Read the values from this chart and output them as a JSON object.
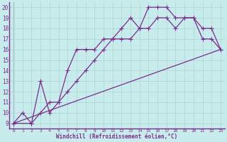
{
  "xlabel": "Windchill (Refroidissement éolien,°C)",
  "bg_color": "#c8ecec",
  "line_color": "#7b2d8b",
  "grid_color": "#b0d8d8",
  "xlim": [
    -0.5,
    23.5
  ],
  "ylim": [
    8.5,
    20.5
  ],
  "xticks": [
    0,
    1,
    2,
    3,
    4,
    5,
    6,
    7,
    8,
    9,
    10,
    11,
    12,
    13,
    14,
    15,
    16,
    17,
    18,
    19,
    20,
    21,
    22,
    23
  ],
  "yticks": [
    9,
    10,
    11,
    12,
    13,
    14,
    15,
    16,
    17,
    18,
    19,
    20
  ],
  "line1_x": [
    0,
    1,
    2,
    3,
    4,
    5,
    6,
    7,
    8,
    9,
    10,
    11,
    12,
    13,
    14,
    15,
    16,
    17,
    18,
    19,
    20,
    21,
    22,
    23
  ],
  "line1_y": [
    9,
    10,
    9,
    13,
    10,
    11,
    14,
    16,
    16,
    16,
    17,
    17,
    18,
    19,
    18,
    20,
    20,
    20,
    19,
    19,
    19,
    18,
    18,
    16
  ],
  "line2_x": [
    0,
    2,
    3,
    4,
    5,
    6,
    7,
    8,
    9,
    10,
    11,
    12,
    13,
    14,
    15,
    16,
    17,
    18,
    19,
    20,
    21,
    22,
    23
  ],
  "line2_y": [
    9,
    9,
    10,
    11,
    11,
    12,
    13,
    14,
    15,
    16,
    17,
    17,
    17,
    18,
    18,
    19,
    19,
    18,
    19,
    19,
    17,
    17,
    16
  ],
  "line3_x": [
    0,
    23
  ],
  "line3_y": [
    9,
    16
  ]
}
